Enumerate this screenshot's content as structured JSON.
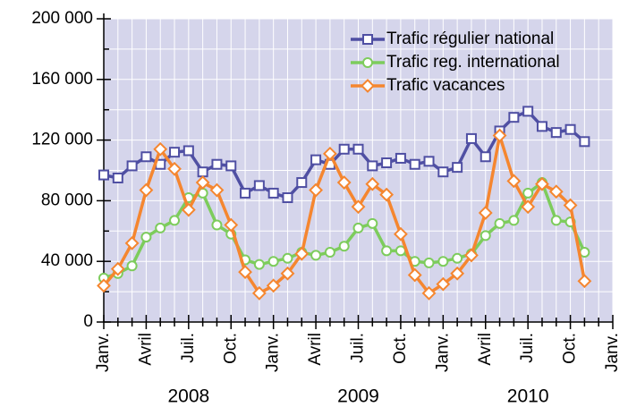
{
  "chart_data": {
    "type": "line",
    "categories": [
      "Janv.",
      null,
      null,
      "Avril",
      null,
      null,
      "Juil.",
      null,
      null,
      "Oct.",
      null,
      null,
      "Janv.",
      null,
      null,
      "Avril",
      null,
      null,
      "Juil.",
      null,
      null,
      "Oct.",
      null,
      null,
      "Janv.",
      null,
      null,
      "Avril",
      null,
      null,
      "Juil.",
      null,
      null,
      "Oct.",
      null,
      null,
      "Janv."
    ],
    "x_groups": [
      "2008",
      "2009",
      "2010"
    ],
    "series": [
      {
        "name": "Trafic régulier national",
        "color": "#4f4fa3",
        "marker": "square",
        "values": [
          97000,
          95000,
          103000,
          109000,
          104000,
          112000,
          113000,
          99000,
          104000,
          103000,
          85000,
          90000,
          85000,
          82000,
          92000,
          107000,
          104000,
          114000,
          114000,
          103000,
          105000,
          108000,
          104000,
          106000,
          99000,
          102000,
          121000,
          109000,
          126000,
          135000,
          139000,
          129000,
          125000,
          127000,
          119000,
          null,
          null
        ]
      },
      {
        "name": "Trafic reg. international",
        "color": "#7dcc5c",
        "marker": "circle",
        "values": [
          29000,
          32000,
          37000,
          56000,
          62000,
          67000,
          82000,
          85000,
          64000,
          58000,
          41000,
          38000,
          40000,
          42000,
          46000,
          44000,
          46000,
          50000,
          62000,
          65000,
          47000,
          47000,
          40000,
          39000,
          40000,
          42000,
          45000,
          57000,
          65000,
          67000,
          85000,
          92000,
          67000,
          66000,
          46000,
          null,
          null
        ]
      },
      {
        "name": "Trafic vacances",
        "color": "#f5862f",
        "marker": "diamond",
        "values": [
          24000,
          35000,
          52000,
          87000,
          114000,
          101000,
          74000,
          92000,
          87000,
          64000,
          33000,
          19000,
          24000,
          32000,
          45000,
          87000,
          111000,
          92000,
          76000,
          91000,
          84000,
          58000,
          31000,
          19000,
          25000,
          32000,
          44000,
          72000,
          123000,
          93000,
          76000,
          91000,
          86000,
          77000,
          27000,
          null,
          null
        ]
      }
    ],
    "ylim": [
      0,
      200000
    ],
    "yticks": [
      {
        "value": 0,
        "label": "0"
      },
      {
        "value": 40000,
        "label": "40 000"
      },
      {
        "value": 80000,
        "label": "80 000"
      },
      {
        "value": 120000,
        "label": "120 000"
      },
      {
        "value": 160000,
        "label": "160 000"
      },
      {
        "value": 200000,
        "label": "200 000"
      }
    ],
    "yminor_ticks": [
      20000,
      60000,
      100000,
      140000,
      180000
    ],
    "grid": true,
    "plot_background": "#d5d5eb",
    "legend": "top-right"
  }
}
